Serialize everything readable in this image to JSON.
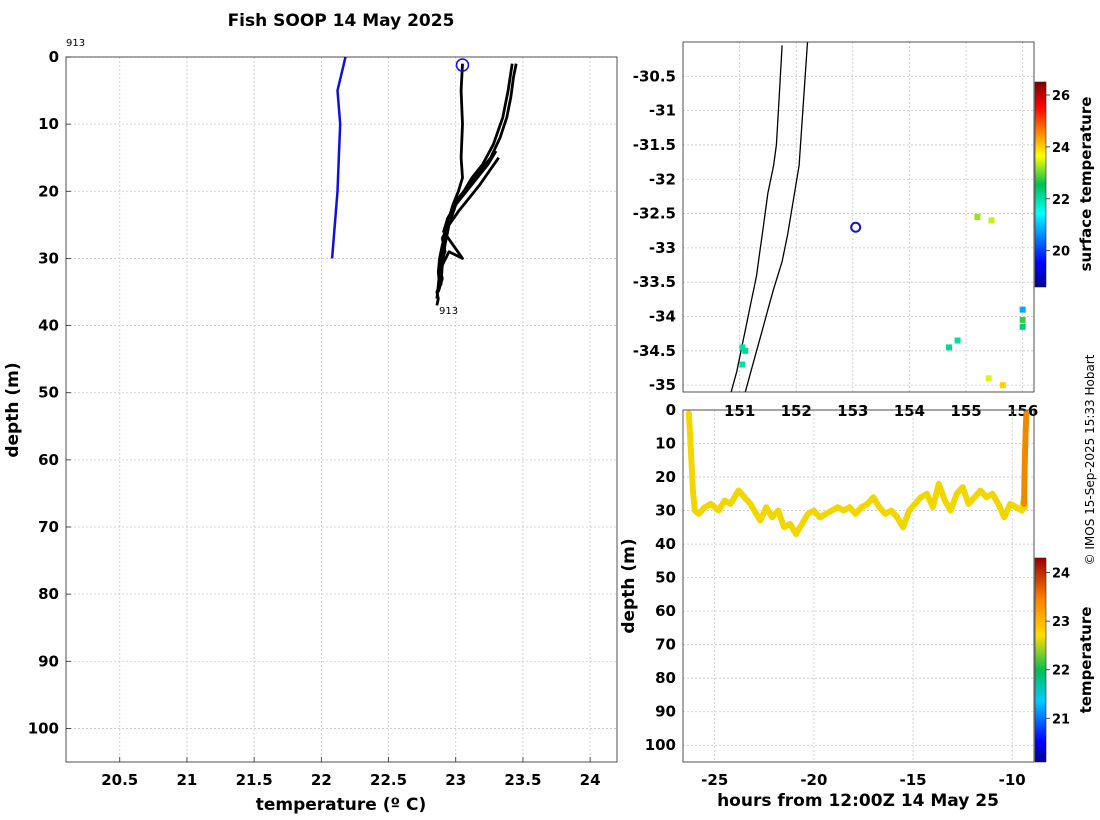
{
  "figure": {
    "title": "Fish SOOP 14 May 2025",
    "credit": "© IMOS 15-Sep-2025 15:33 Hobart"
  },
  "chart_data": [
    {
      "name": "profile",
      "type": "line",
      "title": "Fish SOOP 14 May 2025",
      "xlabel": "temperature (º C)",
      "ylabel": "depth (m)",
      "xlim": [
        20.1,
        24.2
      ],
      "ylim": [
        105,
        0
      ],
      "xticks": [
        20.5,
        21,
        21.5,
        22,
        22.5,
        23,
        23.5,
        24
      ],
      "yticks": [
        0,
        10,
        20,
        30,
        40,
        50,
        60,
        70,
        80,
        90,
        100
      ],
      "grid": true,
      "annotations": [
        {
          "text": "913",
          "x": 20.1,
          "y": -2
        },
        {
          "text": "913",
          "x": 22.87,
          "y": 38
        },
        {
          "text": "blue circle marker",
          "x": 23.05,
          "y": 1.2
        }
      ],
      "series": [
        {
          "name": "reference profile",
          "color": "#1010dd",
          "x": [
            22.18,
            22.12,
            22.14,
            22.13,
            22.12,
            22.1,
            22.08
          ],
          "y": [
            0,
            5,
            10,
            15,
            20,
            25,
            30
          ]
        },
        {
          "name": "fish track profile 1",
          "color": "#000000",
          "x": [
            23.05,
            23.04,
            23.05,
            23.04,
            23.05,
            23.02,
            22.98,
            22.95,
            22.93,
            22.9,
            22.88,
            22.87,
            22.88,
            22.86,
            22.87,
            22.86
          ],
          "y": [
            1,
            5,
            10,
            15,
            18,
            20,
            22,
            24,
            26,
            28,
            30,
            32,
            34,
            35,
            36,
            37
          ]
        },
        {
          "name": "fish track profile 2",
          "color": "#000000",
          "x": [
            23.45,
            23.43,
            23.41,
            23.38,
            23.33,
            23.26,
            23.18,
            23.1,
            23.02,
            22.96,
            22.92,
            22.89,
            22.88,
            22.87,
            22.86
          ],
          "y": [
            1,
            3,
            6,
            9,
            12,
            15,
            17,
            19,
            21,
            24,
            27,
            30,
            32,
            34,
            36
          ]
        },
        {
          "name": "fish track profile 3",
          "color": "#000000",
          "x": [
            23.42,
            23.39,
            23.35,
            23.28,
            23.2,
            23.12,
            23.06,
            23.0,
            22.95,
            22.92,
            22.9,
            22.89
          ],
          "y": [
            1,
            5,
            9,
            13,
            16,
            18,
            20,
            22,
            25,
            28,
            31,
            34
          ]
        },
        {
          "name": "fish track profile 4",
          "color": "#000000",
          "x": [
            23.3,
            23.24,
            23.16,
            23.08,
            23.0,
            22.94,
            22.91,
            23.05,
            22.95,
            22.9,
            22.88
          ],
          "y": [
            14,
            16,
            18,
            20,
            22,
            24,
            26,
            30,
            29,
            31,
            33
          ]
        },
        {
          "name": "fish track profile 5",
          "color": "#000000",
          "x": [
            23.32,
            23.25,
            23.18,
            23.1,
            23.02,
            22.95,
            22.9,
            22.92,
            22.88,
            22.9,
            22.87
          ],
          "y": [
            15,
            17,
            19,
            21,
            23,
            25,
            27,
            29,
            31,
            33,
            35
          ]
        }
      ]
    },
    {
      "name": "map",
      "type": "scatter",
      "xlabel": "",
      "ylabel": "",
      "xlim": [
        150.0,
        156.2
      ],
      "ylim": [
        -35.1,
        -30.0
      ],
      "xticks": [
        151,
        152,
        153,
        154,
        155,
        156
      ],
      "yticks": [
        -30.5,
        -31,
        -31.5,
        -32,
        -32.5,
        -33,
        -33.5,
        -34,
        -34.5,
        -35
      ],
      "xticklabels": [
        "151",
        "152",
        "153",
        "154",
        "155",
        "156"
      ],
      "ytick_labels": [
        "-30.5",
        "-31",
        "-31.5",
        "-32",
        "-32.5",
        "-33",
        "-33.5",
        "-34",
        "-34.5",
        "-35"
      ],
      "grid": true,
      "colorbar": {
        "label": "surface temperature",
        "range": [
          18.6,
          26.5
        ],
        "ticks": [
          20,
          22,
          24,
          26
        ],
        "ticklabels": [
          "20",
          "22",
          "24",
          "26"
        ]
      },
      "coastline": {
        "lon": [
          151.75,
          151.7,
          151.65,
          151.6,
          151.5,
          151.45,
          151.4,
          151.35,
          151.3,
          151.25,
          151.2,
          151.15,
          151.1,
          151.05,
          151.0,
          150.95,
          150.9,
          150.85
        ],
        "lat": [
          -30.05,
          -30.8,
          -31.5,
          -31.8,
          -32.2,
          -32.5,
          -32.8,
          -33.1,
          -33.4,
          -33.6,
          -33.8,
          -34.0,
          -34.2,
          -34.4,
          -34.6,
          -34.8,
          -34.95,
          -35.1
        ]
      },
      "shelf_contour": {
        "lon": [
          152.2,
          152.15,
          152.1,
          152.05,
          151.95,
          151.85,
          151.75,
          151.6,
          151.5,
          151.4,
          151.3,
          151.2,
          151.1
        ],
        "lat": [
          -30.0,
          -30.6,
          -31.2,
          -31.8,
          -32.3,
          -32.8,
          -33.2,
          -33.6,
          -33.9,
          -34.2,
          -34.5,
          -34.8,
          -35.1
        ]
      },
      "points": [
        {
          "lon": 153.05,
          "lat": -32.7,
          "temp": null,
          "kind": "blue circle marker"
        },
        {
          "lon": 151.05,
          "lat": -34.45,
          "temp": 22.0
        },
        {
          "lon": 151.1,
          "lat": -34.5,
          "temp": 22.1
        },
        {
          "lon": 151.05,
          "lat": -34.7,
          "temp": 22.0
        },
        {
          "lon": 154.7,
          "lat": -34.45,
          "temp": 22.1
        },
        {
          "lon": 154.85,
          "lat": -34.35,
          "temp": 22.0
        },
        {
          "lon": 155.45,
          "lat": -32.6,
          "temp": 23.4
        },
        {
          "lon": 155.2,
          "lat": -32.55,
          "temp": 23.2
        },
        {
          "lon": 155.4,
          "lat": -34.9,
          "temp": 23.5
        },
        {
          "lon": 155.65,
          "lat": -35.0,
          "temp": 24.0
        },
        {
          "lon": 156.0,
          "lat": -33.9,
          "temp": 20.8
        },
        {
          "lon": 156.0,
          "lat": -34.05,
          "temp": 22.8
        },
        {
          "lon": 156.0,
          "lat": -34.15,
          "temp": 22.3
        }
      ]
    },
    {
      "name": "timeseries",
      "type": "scatter",
      "xlabel": "hours from 12:00Z 14 May 25",
      "ylabel": "depth (m)",
      "xlim": [
        -26.6,
        -8.9
      ],
      "ylim": [
        105,
        0
      ],
      "xticks": [
        -25,
        -20,
        -15,
        -10
      ],
      "yticks": [
        0,
        10,
        20,
        30,
        40,
        50,
        60,
        70,
        80,
        90,
        100
      ],
      "grid": true,
      "colorbar": {
        "label": "temperature",
        "range": [
          20.1,
          24.3
        ],
        "ticks": [
          21,
          22,
          23,
          24
        ],
        "ticklabels": [
          "21",
          "22",
          "23",
          "24"
        ]
      },
      "series": [
        {
          "name": "fish depth",
          "color": "#f2d600",
          "x": [
            -26.3,
            -26.2,
            -26.1,
            -26.0,
            -25.8,
            -25.5,
            -25.2,
            -25.0,
            -24.8,
            -24.5,
            -24.2,
            -24.0,
            -23.8,
            -23.5,
            -23.2,
            -23.0,
            -22.7,
            -22.4,
            -22.1,
            -21.8,
            -21.5,
            -21.2,
            -20.9,
            -20.6,
            -20.3,
            -20.0,
            -19.7,
            -19.4,
            -19.1,
            -18.8,
            -18.5,
            -18.2,
            -17.9,
            -17.6,
            -17.3,
            -17.0,
            -16.7,
            -16.4,
            -16.1,
            -15.8,
            -15.5,
            -15.2,
            -14.9,
            -14.6,
            -14.3,
            -14.0,
            -13.7,
            -13.4,
            -13.1,
            -12.8,
            -12.5,
            -12.2,
            -11.9,
            -11.6,
            -11.3,
            -11.0,
            -10.7,
            -10.4,
            -10.1,
            -9.8,
            -9.5,
            -9.4,
            -9.35
          ],
          "y": [
            1,
            12,
            24,
            30,
            31,
            29,
            28,
            29,
            30,
            27,
            28,
            26,
            24,
            26,
            28,
            30,
            33,
            29,
            32,
            30,
            35,
            34,
            37,
            34,
            31,
            30,
            32,
            31,
            30,
            29,
            30,
            29,
            31,
            29,
            28,
            26,
            29,
            31,
            30,
            32,
            35,
            30,
            28,
            26,
            25,
            29,
            22,
            27,
            30,
            25,
            23,
            28,
            26,
            24,
            26,
            25,
            28,
            32,
            28,
            29,
            30,
            26,
            29
          ]
        },
        {
          "name": "fish depth ascent",
          "color": "#ee8a00",
          "x": [
            -9.4,
            -9.38,
            -9.36,
            -9.34,
            -9.32,
            -9.3,
            -9.28
          ],
          "y": [
            28,
            20,
            14,
            10,
            6,
            3,
            1
          ]
        }
      ]
    }
  ]
}
